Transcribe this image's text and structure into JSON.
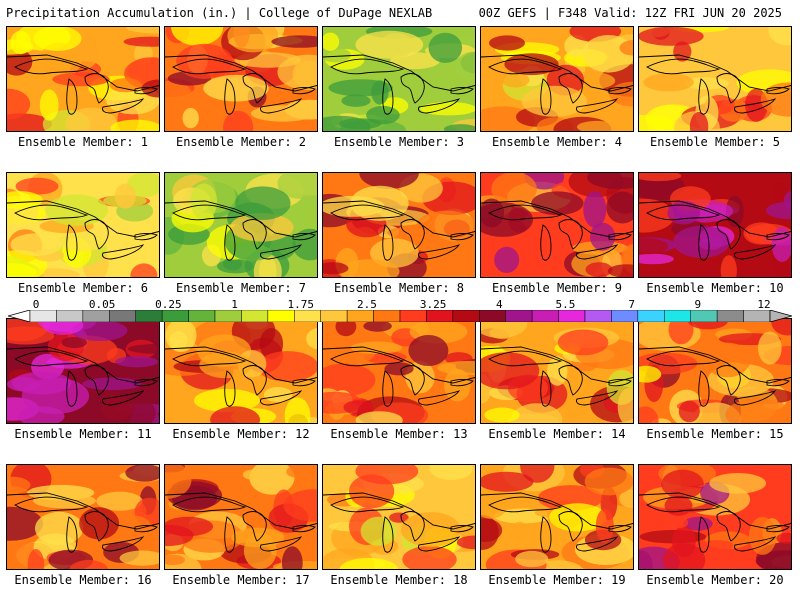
{
  "header": {
    "left": "Precipitation Accumulation (in.) | College of DuPage NEXLAB",
    "right": "00Z GEFS | F348 Valid: 12Z FRI JUN 20 2025"
  },
  "panels": [
    {
      "label": "Ensemble Member: 1"
    },
    {
      "label": "Ensemble Member: 2"
    },
    {
      "label": "Ensemble Member: 3"
    },
    {
      "label": "Ensemble Member: 4"
    },
    {
      "label": "Ensemble Member: 5"
    },
    {
      "label": "Ensemble Member: 6"
    },
    {
      "label": "Ensemble Member: 7"
    },
    {
      "label": "Ensemble Member: 8"
    },
    {
      "label": "Ensemble Member: 9"
    },
    {
      "label": "Ensemble Member: 10"
    },
    {
      "label": "Ensemble Member: 11"
    },
    {
      "label": "Ensemble Member: 12"
    },
    {
      "label": "Ensemble Member: 13"
    },
    {
      "label": "Ensemble Member: 14"
    },
    {
      "label": "Ensemble Member: 15"
    },
    {
      "label": "Ensemble Member: 16"
    },
    {
      "label": "Ensemble Member: 17"
    },
    {
      "label": "Ensemble Member: 18"
    },
    {
      "label": "Ensemble Member: 19"
    },
    {
      "label": "Ensemble Member: 20"
    }
  ],
  "colorbar": {
    "tick_labels": [
      "0",
      "0.05",
      "0.25",
      "1",
      "1.75",
      "2.5",
      "3.25",
      "4",
      "5.5",
      "7",
      "9",
      "12"
    ],
    "colors": [
      "#e6e6e6",
      "#c8c8c8",
      "#a0a0a0",
      "#787878",
      "#2d7d3a",
      "#3c9c3c",
      "#64b43c",
      "#a0cd3c",
      "#d2e632",
      "#ffff00",
      "#ffe14b",
      "#ffc83c",
      "#ffa51e",
      "#ff7814",
      "#ff3c1e",
      "#e1141e",
      "#b40a14",
      "#8c0a28",
      "#a0148c",
      "#c81eb4",
      "#e628dc",
      "#b45af0",
      "#6e8cff",
      "#3cd2ff",
      "#1ee6e6",
      "#50c8b4",
      "#8c8c8c",
      "#b4b4b4"
    ]
  }
}
